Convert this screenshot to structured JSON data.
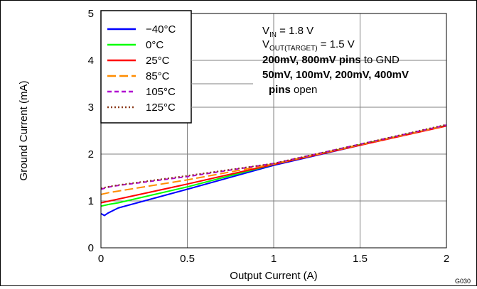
{
  "chart_data": {
    "type": "line",
    "xlabel": "Output Current (A)",
    "ylabel": "Ground Current (mA)",
    "xlim": [
      0,
      2
    ],
    "ylim": [
      0,
      5
    ],
    "xticks": [
      0,
      0.5,
      1,
      1.5,
      2
    ],
    "xtick_labels": [
      "0",
      "0.5",
      "1",
      "1.5",
      "2"
    ],
    "yticks": [
      0,
      1,
      2,
      3,
      4,
      5
    ],
    "ytick_labels": [
      "0",
      "1",
      "2",
      "3",
      "4",
      "5"
    ],
    "grid": true,
    "legend_position": "top-left",
    "figure_id": "G030",
    "conditions": {
      "vin_prefix": "V",
      "vin_sub": "IN",
      "vin_value": " = 1.8 V",
      "vout_prefix": "V",
      "vout_sub": "OUT(TARGET)",
      "vout_value": " = 1.5 V",
      "line3_bold": "200mV, 800mV pins",
      "line3_rest": " to GND",
      "line4_bold": "50mV, 100mV, 200mV, 400mV",
      "line5_bold": "pins",
      "line5_rest": " open"
    },
    "series": [
      {
        "name": "−40°C",
        "color": "#0000ff",
        "dash": "solid",
        "x": [
          0,
          0.02,
          0.04,
          0.1,
          0.5,
          1,
          1.5,
          2
        ],
        "y": [
          0.73,
          0.69,
          0.74,
          0.85,
          1.25,
          1.76,
          2.19,
          2.61
        ]
      },
      {
        "name": "0°C",
        "color": "#00ff00",
        "dash": "solid",
        "x": [
          0,
          0.05,
          0.1,
          0.5,
          1,
          1.5,
          2
        ],
        "y": [
          0.89,
          0.93,
          0.96,
          1.3,
          1.78,
          2.2,
          2.61
        ]
      },
      {
        "name": "25°C",
        "color": "#ff0000",
        "dash": "solid",
        "x": [
          0,
          0.05,
          0.1,
          0.5,
          1,
          1.5,
          2
        ],
        "y": [
          0.96,
          1.0,
          1.04,
          1.36,
          1.78,
          2.19,
          2.6
        ]
      },
      {
        "name": "85°C",
        "color": "#ff8c00",
        "dash": "longdash",
        "x": [
          0,
          0.05,
          0.1,
          0.5,
          1,
          1.5,
          2
        ],
        "y": [
          1.14,
          1.18,
          1.21,
          1.45,
          1.79,
          2.2,
          2.61
        ]
      },
      {
        "name": "105°C",
        "color": "#b000d0",
        "dash": "dash",
        "x": [
          0,
          0.05,
          0.1,
          0.5,
          1,
          1.5,
          2
        ],
        "y": [
          1.25,
          1.3,
          1.33,
          1.52,
          1.8,
          2.21,
          2.62
        ]
      },
      {
        "name": "125°C",
        "color": "#8b3a1a",
        "dash": "dot",
        "x": [
          0,
          0.05,
          0.1,
          0.5,
          1,
          1.5,
          2
        ],
        "y": [
          1.27,
          1.31,
          1.34,
          1.54,
          1.8,
          2.21,
          2.63
        ]
      }
    ]
  }
}
